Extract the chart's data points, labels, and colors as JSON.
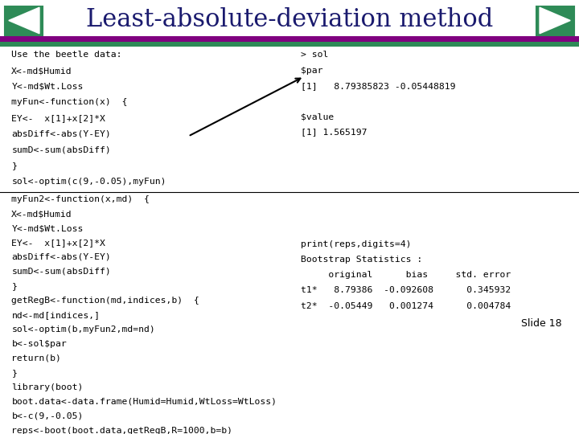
{
  "title": "Least-absolute-deviation method",
  "bg_color": "#ffffff",
  "title_color": "#1a1a6e",
  "left_code": [
    "Use the beetle data:",
    "X<-md$Humid",
    "Y<-md$Wt.Loss",
    "myFun<-function(x)  {",
    "EY<-  x[1]+x[2]*X",
    "absDiff<-abs(Y-EY)",
    "sumD<-sum(absDiff)",
    "}",
    "sol<-optim(c(9,-0.05),myFun)"
  ],
  "right_top_code": [
    "> sol",
    "$par",
    "[1]   8.79385823 -0.05448819",
    "",
    "$value",
    "[1] 1.565197"
  ],
  "left_code2": [
    "myFun2<-function(x,md)  {",
    "X<-md$Humid",
    "Y<-md$Wt.Loss",
    "EY<-  x[1]+x[2]*X",
    "absDiff<-abs(Y-EY)",
    "sumD<-sum(absDiff)",
    "}",
    "getRegB<-function(md,indices,b)  {",
    "nd<-md[indices,]",
    "sol<-optim(b,myFun2,md=nd)",
    "b<-sol$par",
    "return(b)",
    "}",
    "library(boot)",
    "boot.data<-data.frame(Humid=Humid,WtLoss=WtLoss)",
    "b<-c(9,-0.05)",
    "reps<-boot(boot.data,getRegB,R=1000,b=b)"
  ],
  "right_bottom_code": [
    "print(reps,digits=4)",
    "Bootstrap Statistics :",
    "     original      bias     std. error",
    "t1*   8.79386  -0.092608      0.345932",
    "t2*  -0.05449   0.001274      0.004784"
  ],
  "slide_label": "Slide 18",
  "teal_color": "#2e8b57",
  "purple_color": "#800080"
}
